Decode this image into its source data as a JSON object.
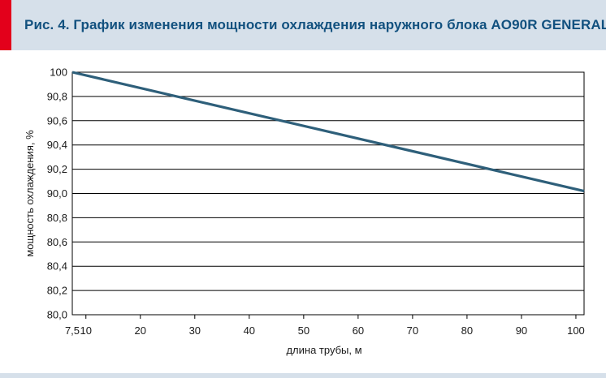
{
  "header": {
    "title": "Рис. 4. График изменения мощности охлаждения наружного блока AO90R GENERAL"
  },
  "colors": {
    "header_bg": "#d6e0ea",
    "accent": "#e3001b",
    "title": "#12517f",
    "series_line": "#2e5f7a",
    "grid": "#000000"
  },
  "chart_data": {
    "type": "line",
    "title": "",
    "xlabel": "длина трубы,  м",
    "ylabel": "мощность охлаждения, %",
    "x_ticks": [
      "7,5",
      "10",
      "20",
      "30",
      "40",
      "50",
      "60",
      "70",
      "80",
      "90",
      "100"
    ],
    "x_tick_values": [
      7.5,
      10,
      20,
      30,
      40,
      50,
      60,
      70,
      80,
      90,
      100
    ],
    "y_ticks": [
      "80,0",
      "80,2",
      "80,4",
      "80,6",
      "80,8",
      "90,0",
      "90,2",
      "90,4",
      "90,6",
      "90,8",
      "100"
    ],
    "xlim": [
      7.5,
      101.5
    ],
    "grid": true,
    "series": [
      {
        "x": [
          7.5,
          101.5
        ],
        "y_tick_position": [
          10,
          5.1
        ]
      }
    ]
  }
}
